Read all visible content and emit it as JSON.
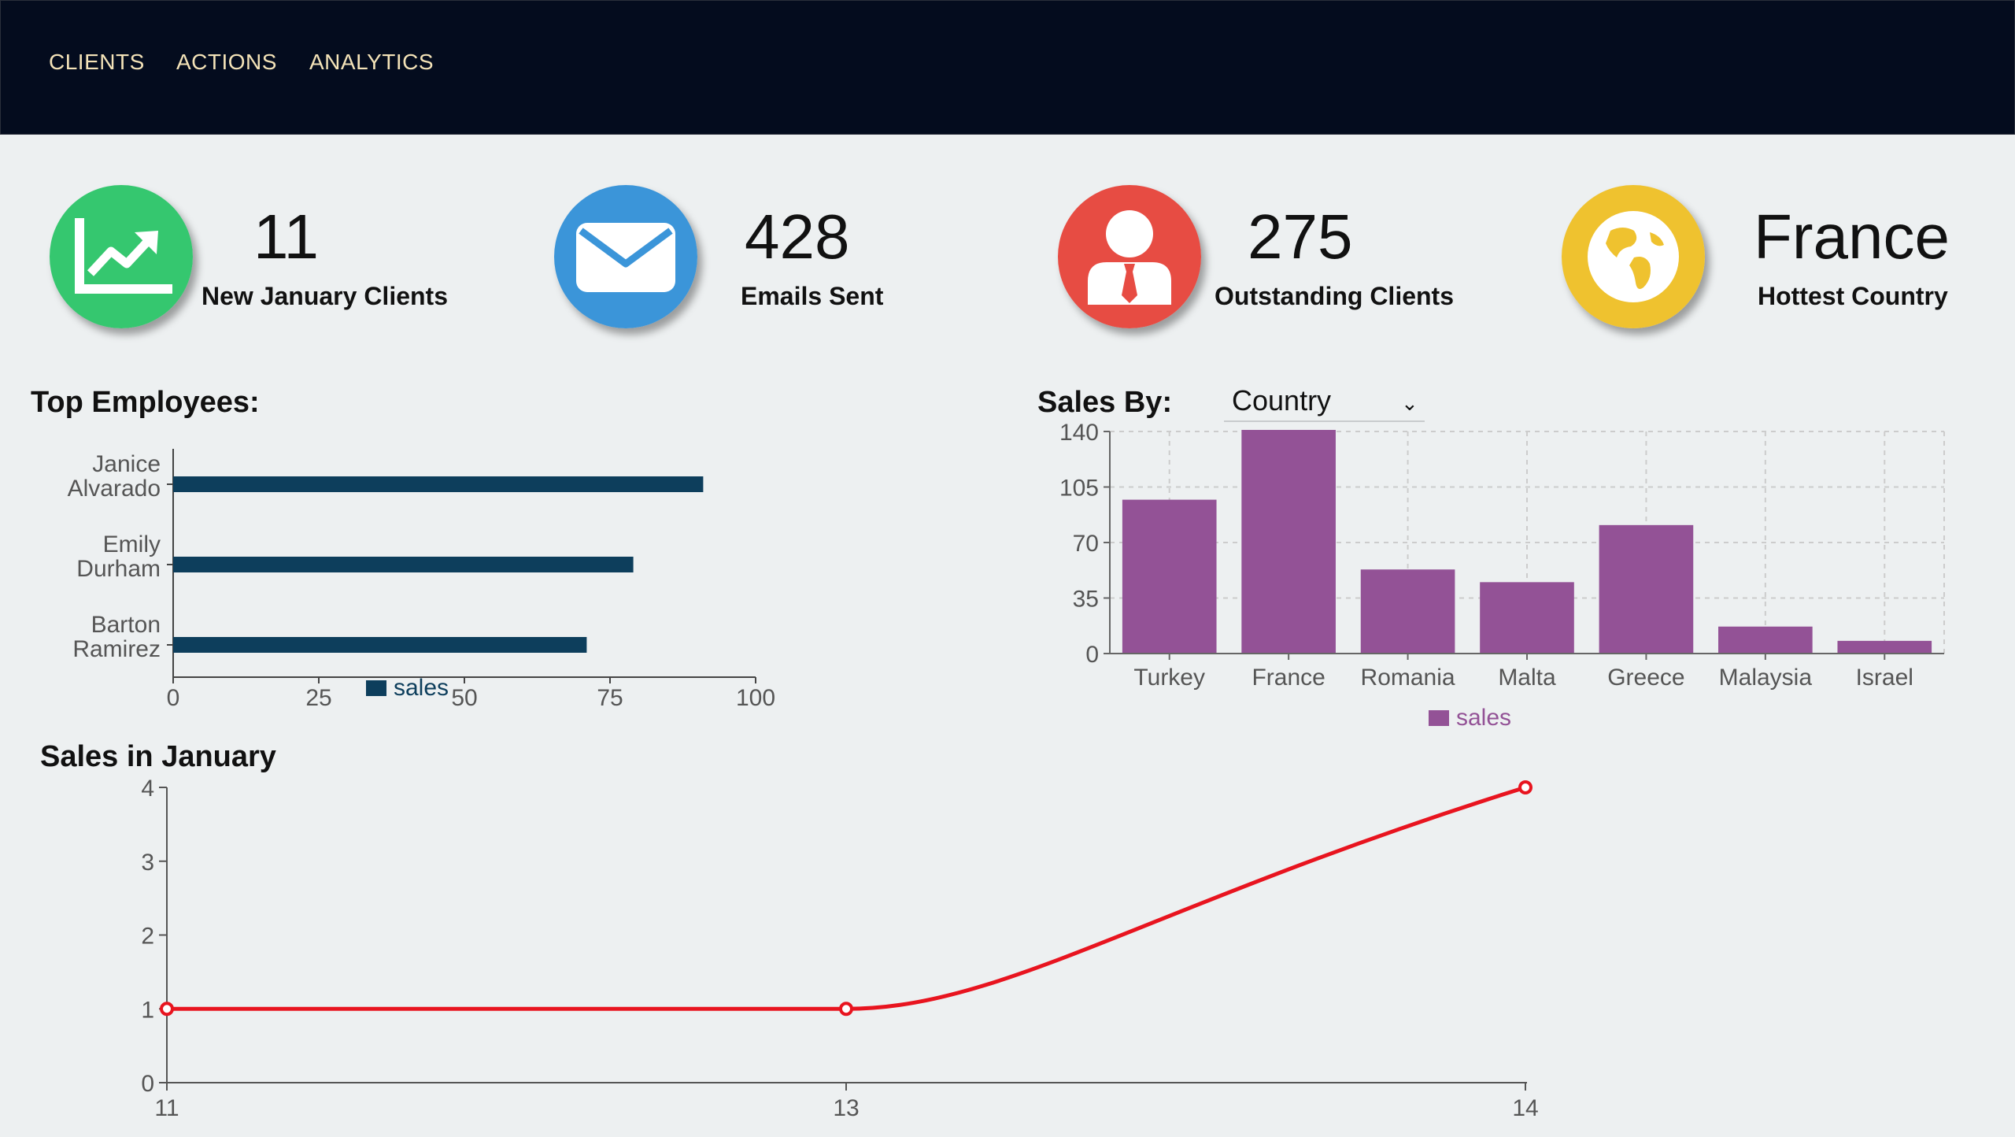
{
  "nav": {
    "items": [
      "CLIENTS",
      "ACTIONS",
      "ANALYTICS"
    ]
  },
  "stats": [
    {
      "value": "11",
      "label": "New January Clients",
      "icon": "trending-up-chart-icon",
      "color": "#35c76f"
    },
    {
      "value": "428",
      "label": "Emails Sent",
      "icon": "envelope-icon",
      "color": "#3b95d9"
    },
    {
      "value": "275",
      "label": "Outstanding Clients",
      "icon": "businessman-icon",
      "color": "#e74c43"
    },
    {
      "value": "France",
      "label": "Hottest Country",
      "icon": "globe-icon",
      "color": "#efc22f"
    }
  ],
  "top_employees": {
    "title": "Top Employees:"
  },
  "sales_by": {
    "label": "Sales By:",
    "selected": "Country"
  },
  "sales_january": {
    "title": "Sales in January"
  },
  "chart_data": [
    {
      "type": "bar",
      "orientation": "horizontal",
      "categories": [
        "Janice Alvarado",
        "Emily Durham",
        "Barton Ramirez"
      ],
      "series": [
        {
          "name": "sales",
          "values": [
            91,
            79,
            71
          ]
        }
      ],
      "xlim": [
        0,
        100
      ],
      "xticks": [
        0,
        25,
        50,
        75,
        100
      ],
      "legend": "bottom",
      "color": "#0d3e5c"
    },
    {
      "type": "bar",
      "categories": [
        "Turkey",
        "France",
        "Romania",
        "Malta",
        "Greece",
        "Malaysia",
        "Israel"
      ],
      "series": [
        {
          "name": "sales",
          "values": [
            97,
            141,
            53,
            45,
            81,
            17,
            8
          ]
        }
      ],
      "ylim": [
        0,
        140
      ],
      "yticks": [
        0,
        35,
        70,
        105,
        140
      ],
      "grid": true,
      "legend": "bottom",
      "color": "#935296"
    },
    {
      "type": "line",
      "x": [
        "11",
        "13",
        "14"
      ],
      "series": [
        {
          "values": [
            1,
            1,
            4
          ]
        }
      ],
      "ylim": [
        0,
        4
      ],
      "yticks": [
        0,
        1,
        2,
        3,
        4
      ],
      "color": "#e8141f"
    }
  ]
}
